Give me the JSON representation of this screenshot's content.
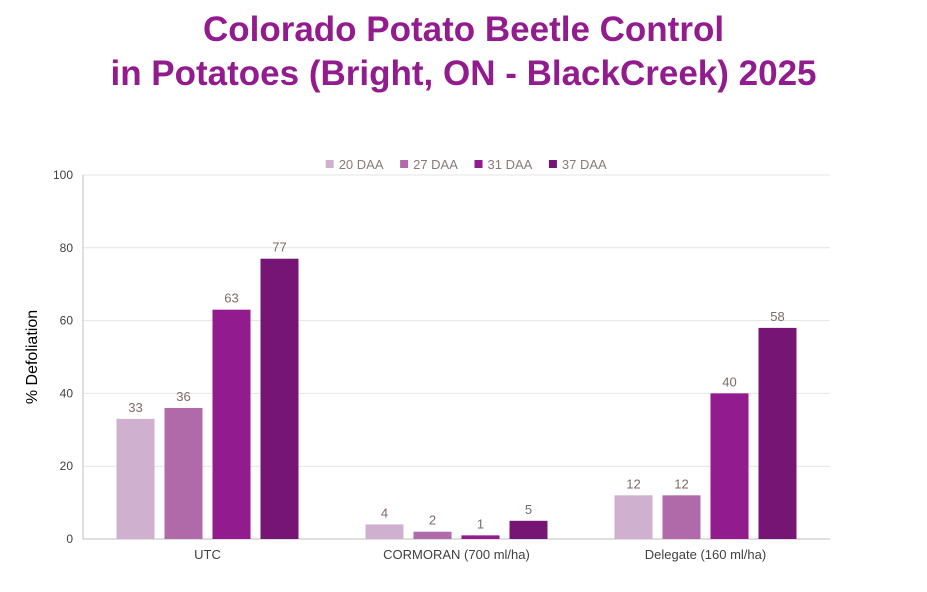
{
  "chart_data": {
    "type": "bar",
    "title_line1": "Colorado Potato Beetle Control",
    "title_line2": "in Potatoes (Bright, ON - BlackCreek) 2025",
    "ylabel": "% Defoliation",
    "xlabel": "",
    "ylim": [
      0,
      100
    ],
    "yticks": [
      0,
      20,
      40,
      60,
      80,
      100
    ],
    "categories": [
      "UTC",
      "CORMORAN (700 ml/ha)",
      "Delegate (160 ml/ha)"
    ],
    "series": [
      {
        "name": "20 DAA",
        "color": "#d0b0cf",
        "values": [
          33,
          4,
          12
        ]
      },
      {
        "name": "27 DAA",
        "color": "#b06aaa",
        "values": [
          36,
          2,
          12
        ]
      },
      {
        "name": "31 DAA",
        "color": "#921b8e",
        "values": [
          63,
          1,
          40
        ]
      },
      {
        "name": "37 DAA",
        "color": "#761574",
        "values": [
          77,
          5,
          58
        ]
      }
    ],
    "legend_position": "top-center",
    "grid": true
  }
}
